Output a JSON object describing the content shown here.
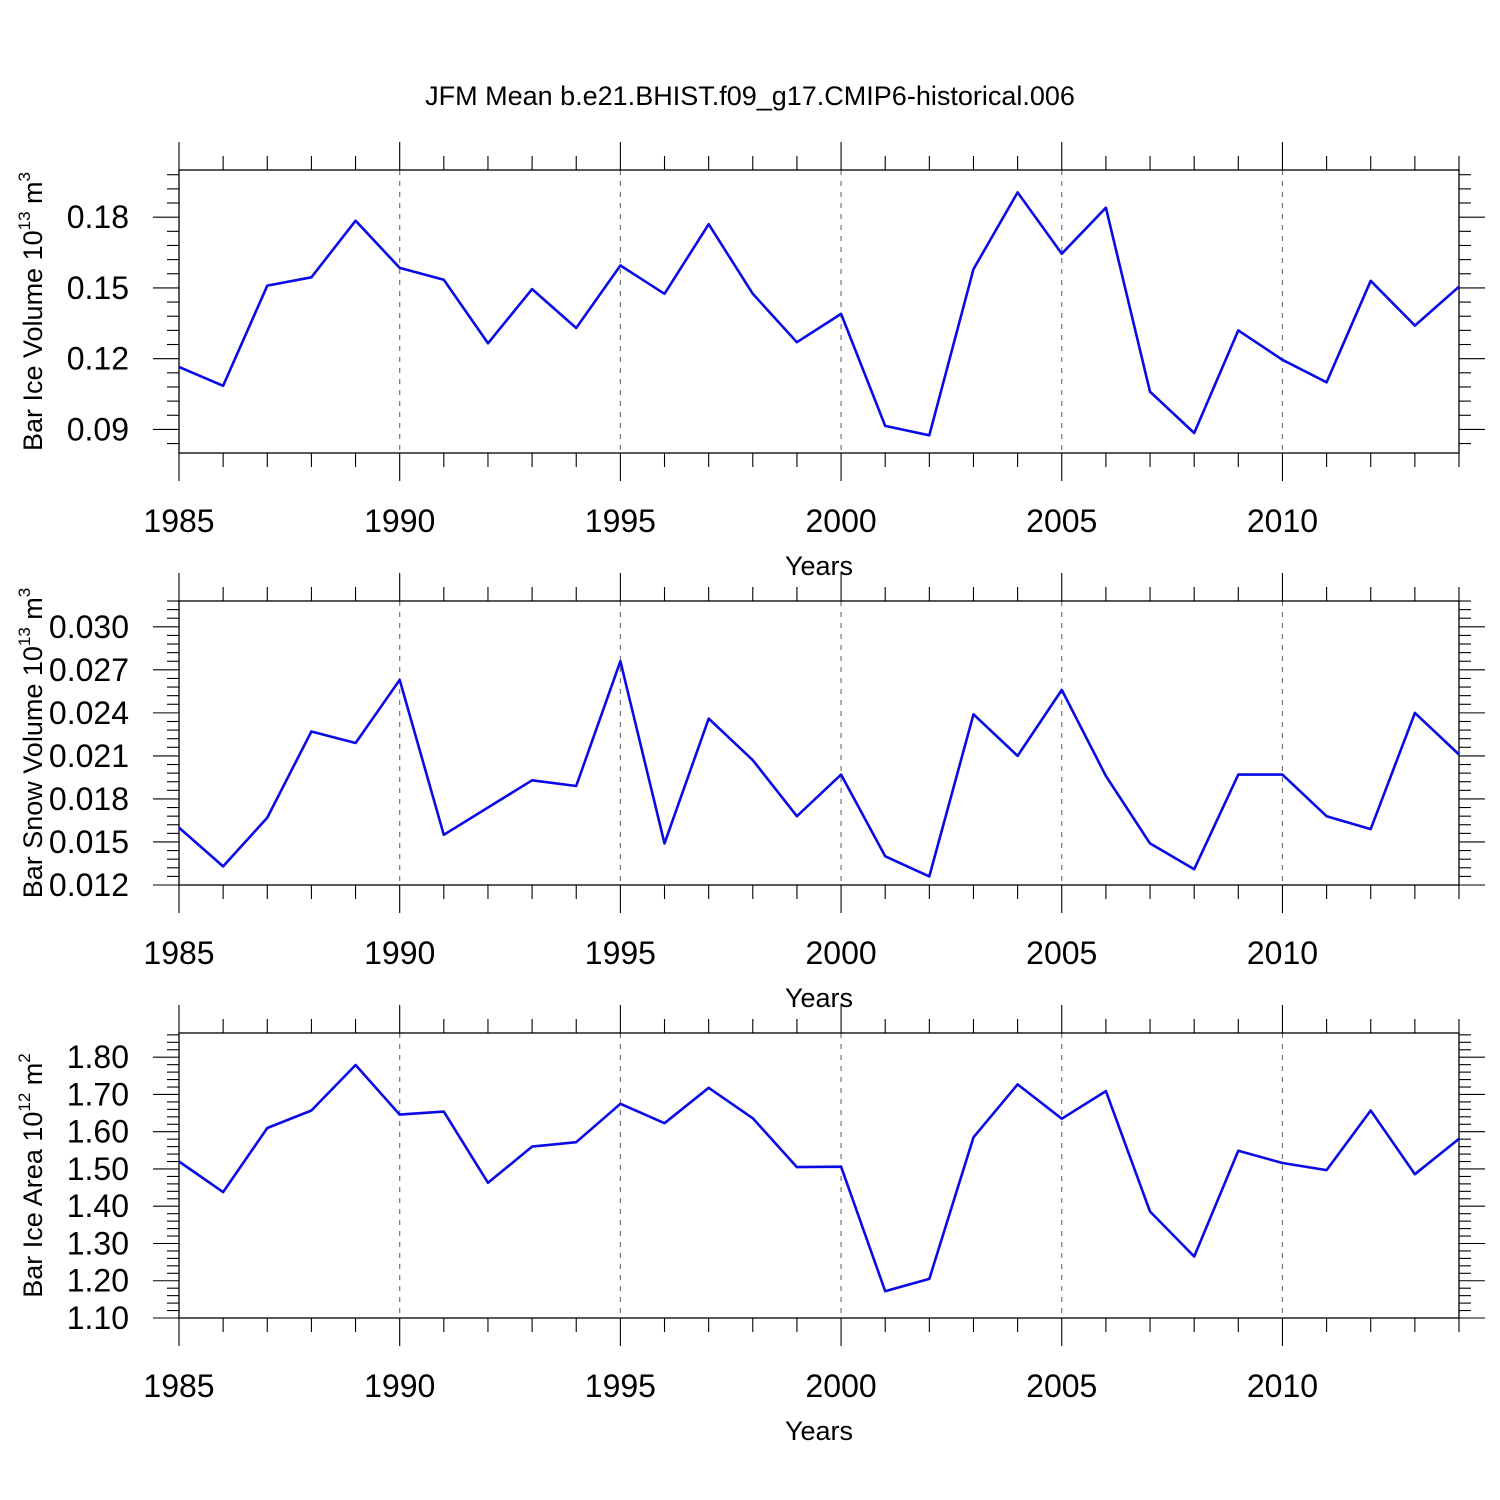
{
  "title": "JFM Mean b.e21.BHIST.f09_g17.CMIP6-historical.006",
  "colors": {
    "line": "#0a0ae6",
    "grid": "#777777",
    "axis": "#000000"
  },
  "chart_data": [
    {
      "type": "line",
      "ylabel": {
        "text": "Bar Ice Volume 10",
        "exp": "13",
        "unit": " m",
        "unit_exp": "3"
      },
      "xlabel": "Years",
      "xlim": [
        1985,
        2014
      ],
      "ylim": [
        0.08,
        0.2
      ],
      "yticks": [
        0.09,
        0.12,
        0.15,
        0.18
      ],
      "ytick_labels": [
        "0.09",
        "0.12",
        "0.15",
        "0.18"
      ],
      "xticks": [
        1985,
        1990,
        1995,
        2000,
        2005,
        2010
      ],
      "xtick_labels": [
        "1985",
        "1990",
        "1995",
        "2000",
        "2005",
        "2010"
      ],
      "grid": "vertical dashed at major x ticks",
      "x": [
        1985,
        1986,
        1987,
        1988,
        1989,
        1990,
        1991,
        1992,
        1993,
        1994,
        1995,
        1996,
        1997,
        1998,
        1999,
        2000,
        2001,
        2002,
        2003,
        2004,
        2005,
        2006,
        2007,
        2008,
        2009,
        2010,
        2011,
        2012,
        2013,
        2014
      ],
      "values": [
        0.1165,
        0.1085,
        0.151,
        0.1545,
        0.1785,
        0.1585,
        0.1535,
        0.1265,
        0.1495,
        0.133,
        0.1595,
        0.1475,
        0.177,
        0.1475,
        0.127,
        0.139,
        0.0915,
        0.0875,
        0.158,
        0.1905,
        0.1645,
        0.184,
        0.106,
        0.0885,
        0.132,
        0.1195,
        0.11,
        0.153,
        0.134,
        0.1505
      ]
    },
    {
      "type": "line",
      "ylabel": {
        "text": "Bar Snow Volume 10",
        "exp": "13",
        "unit": " m",
        "unit_exp": "3"
      },
      "xlabel": "Years",
      "xlim": [
        1985,
        2014
      ],
      "ylim": [
        0.012,
        0.0318
      ],
      "yticks": [
        0.012,
        0.015,
        0.018,
        0.021,
        0.024,
        0.027,
        0.03
      ],
      "ytick_labels": [
        "0.012",
        "0.015",
        "0.018",
        "0.021",
        "0.024",
        "0.027",
        "0.030"
      ],
      "xticks": [
        1985,
        1990,
        1995,
        2000,
        2005,
        2010
      ],
      "xtick_labels": [
        "1985",
        "1990",
        "1995",
        "2000",
        "2005",
        "2010"
      ],
      "grid": "vertical dashed at major x ticks",
      "x": [
        1985,
        1986,
        1987,
        1988,
        1989,
        1990,
        1991,
        1992,
        1993,
        1994,
        1995,
        1996,
        1997,
        1998,
        1999,
        2000,
        2001,
        2002,
        2003,
        2004,
        2005,
        2006,
        2007,
        2008,
        2009,
        2010,
        2011,
        2012,
        2013,
        2014
      ],
      "values": [
        0.016,
        0.0133,
        0.0167,
        0.0227,
        0.0219,
        0.0263,
        0.0155,
        0.0174,
        0.0193,
        0.0189,
        0.0276,
        0.0149,
        0.0236,
        0.0207,
        0.0168,
        0.0197,
        0.014,
        0.0126,
        0.0239,
        0.021,
        0.0256,
        0.0196,
        0.0149,
        0.0131,
        0.0197,
        0.0197,
        0.0168,
        0.0159,
        0.024,
        0.0211
      ]
    },
    {
      "type": "line",
      "ylabel": {
        "text": "Bar Ice Area 10",
        "exp": "12",
        "unit": " m",
        "unit_exp": "2"
      },
      "xlabel": "Years",
      "xlim": [
        1985,
        2014
      ],
      "ylim": [
        1.1,
        1.865
      ],
      "yticks": [
        1.1,
        1.2,
        1.3,
        1.4,
        1.5,
        1.6,
        1.7,
        1.8
      ],
      "ytick_labels": [
        "1.10",
        "1.20",
        "1.30",
        "1.40",
        "1.50",
        "1.60",
        "1.70",
        "1.80"
      ],
      "xticks": [
        1985,
        1990,
        1995,
        2000,
        2005,
        2010
      ],
      "xtick_labels": [
        "1985",
        "1990",
        "1995",
        "2000",
        "2005",
        "2010"
      ],
      "grid": "vertical dashed at major x ticks",
      "x": [
        1985,
        1986,
        1987,
        1988,
        1989,
        1990,
        1991,
        1992,
        1993,
        1994,
        1995,
        1996,
        1997,
        1998,
        1999,
        2000,
        2001,
        2002,
        2003,
        2004,
        2005,
        2006,
        2007,
        2008,
        2009,
        2010,
        2011,
        2012,
        2013,
        2014
      ],
      "values": [
        1.52,
        1.438,
        1.61,
        1.657,
        1.779,
        1.646,
        1.654,
        1.463,
        1.56,
        1.572,
        1.675,
        1.623,
        1.718,
        1.636,
        1.505,
        1.506,
        1.172,
        1.205,
        1.585,
        1.727,
        1.635,
        1.709,
        1.386,
        1.265,
        1.549,
        1.516,
        1.497,
        1.657,
        1.486,
        1.581
      ]
    }
  ]
}
